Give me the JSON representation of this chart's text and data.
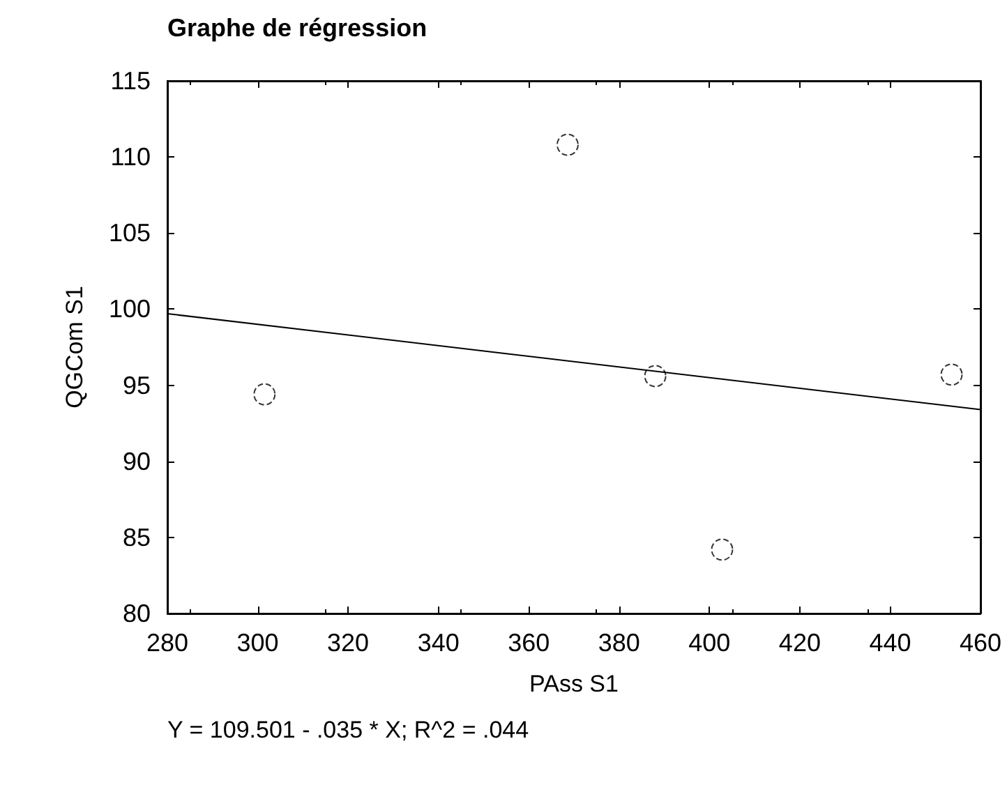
{
  "chart_data": {
    "type": "scatter",
    "title": "Graphe de régression",
    "xlabel": "PAss S1",
    "ylabel": "QGCom S1",
    "annotations": [
      "Y = 109.501 - .035 * X; R^2 = .044"
    ],
    "x": [
      301.5,
      368.6,
      388,
      402.8,
      453.6
    ],
    "series": [
      {
        "color": "#000000",
        "marker": "circle",
        "values": [
          94.4,
          110.8,
          95.6,
          84.2,
          95.7
        ]
      },
      {
        "type": "line",
        "color": "#000000",
        "x": [
          280,
          460
        ],
        "values": [
          99.7,
          93.4
        ],
        "marker": "none",
        "line_style": "solid"
      }
    ],
    "xlim": [
      280,
      460
    ],
    "xticks": [
      280,
      300,
      320,
      340,
      360,
      380,
      400,
      420,
      440,
      460
    ],
    "ylim": [
      80,
      115
    ],
    "yticks": [
      80,
      85,
      90,
      95,
      100,
      105,
      110,
      115
    ],
    "grid": false
  }
}
